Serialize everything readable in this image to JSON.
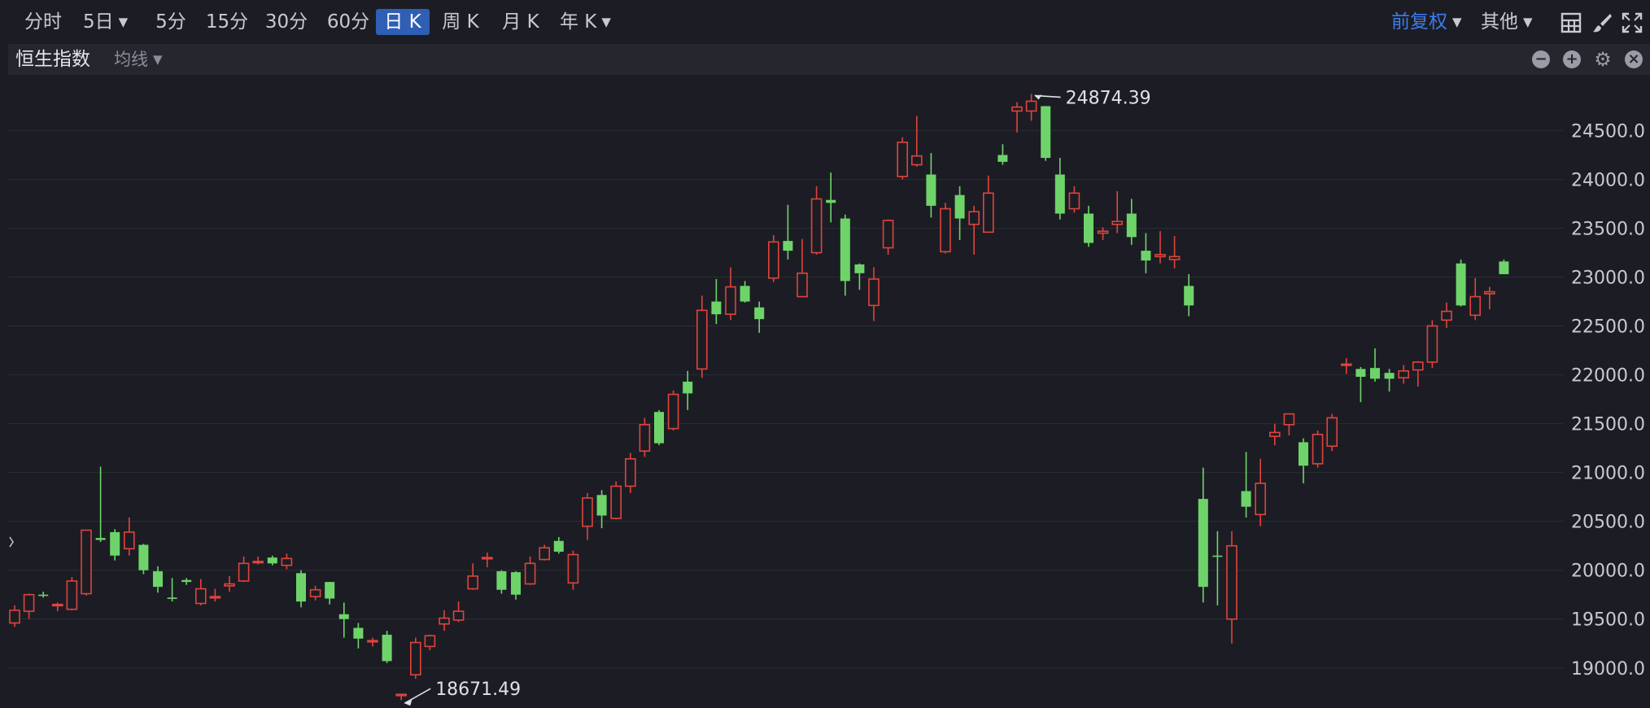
{
  "toolbar": {
    "periods": [
      {
        "label": "分时",
        "active": false
      },
      {
        "label": "5日",
        "active": false,
        "dropdown": true
      },
      {
        "label": "5分",
        "active": false
      },
      {
        "label": "15分",
        "active": false
      },
      {
        "label": "30分",
        "active": false
      },
      {
        "label": "60分",
        "active": false
      },
      {
        "label": "日 K",
        "active": true
      },
      {
        "label": "周 K",
        "active": false
      },
      {
        "label": "月 K",
        "active": false
      },
      {
        "label": "年 K",
        "active": false,
        "dropdown": true
      }
    ],
    "adjust": {
      "label": "前复权",
      "color": "#3d7bea"
    },
    "other": {
      "label": "其他"
    },
    "icons": [
      "layout-grid-icon",
      "brush-icon",
      "fullscreen-icon"
    ]
  },
  "subbar": {
    "title": "恒生指数",
    "ma_label": "均线",
    "icons": [
      "minus-circle-icon",
      "plus-circle-icon",
      "gear-icon",
      "close-circle-icon"
    ]
  },
  "colors": {
    "up": "#e0433c",
    "down": "#6ed46a",
    "background": "#1c1d24",
    "grid": "#2a2c35",
    "axis_text": "#c8cad2",
    "active_tab": "#2f5fb4"
  },
  "chart_data": {
    "type": "candlestick",
    "title": "",
    "y_ticks": [
      19000.0,
      19500.0,
      20000.0,
      20500.0,
      21000.0,
      21500.0,
      22000.0,
      22500.0,
      23000.0,
      23500.0,
      24000.0,
      24500.0
    ],
    "y_tick_labels": [
      "19000.0",
      "19500.0",
      "20000.0",
      "20500.0",
      "21000.0",
      "21500.0",
      "22000.0",
      "22500.0",
      "23000.0",
      "23500.0",
      "24000.0",
      "24500.0"
    ],
    "ylim": [
      18590,
      25070
    ],
    "grid": true,
    "annotations": [
      {
        "label": "24874.39",
        "type": "high",
        "value": 24874.39
      },
      {
        "label": "18671.49",
        "type": "low",
        "value": 18671.49
      }
    ],
    "candles": [
      [
        19460,
        19590,
        19420,
        19640
      ],
      [
        19580,
        19750,
        19500,
        19760
      ],
      [
        19750,
        19740,
        19720,
        19780
      ],
      [
        19650,
        19650,
        19580,
        19670
      ],
      [
        19600,
        19890,
        19590,
        19930
      ],
      [
        19760,
        20410,
        19740,
        20410
      ],
      [
        20330,
        20310,
        20290,
        21060
      ],
      [
        20390,
        20150,
        20100,
        20420
      ],
      [
        20220,
        20390,
        20150,
        20540
      ],
      [
        20260,
        20000,
        19960,
        20270
      ],
      [
        19990,
        19830,
        19770,
        20040
      ],
      [
        19720,
        19710,
        19680,
        19920
      ],
      [
        19900,
        19880,
        19850,
        19920
      ],
      [
        19660,
        19810,
        19640,
        19910
      ],
      [
        19730,
        19730,
        19680,
        19810
      ],
      [
        19840,
        19860,
        19780,
        19940
      ],
      [
        19890,
        20070,
        19880,
        20140
      ],
      [
        20080,
        20090,
        20060,
        20140
      ],
      [
        20130,
        20070,
        20050,
        20150
      ],
      [
        20050,
        20120,
        20010,
        20170
      ],
      [
        19970,
        19680,
        19620,
        20000
      ],
      [
        19730,
        19800,
        19690,
        19840
      ],
      [
        19880,
        19710,
        19650,
        19880
      ],
      [
        19550,
        19500,
        19310,
        19670
      ],
      [
        19410,
        19300,
        19200,
        19460
      ],
      [
        19280,
        19280,
        19220,
        19310
      ],
      [
        19340,
        19070,
        19050,
        19380
      ],
      [
        18730,
        18730,
        18671.49,
        18730
      ],
      [
        18930,
        19260,
        18890,
        19310
      ],
      [
        19220,
        19330,
        19180,
        19340
      ],
      [
        19450,
        19510,
        19380,
        19590
      ],
      [
        19490,
        19580,
        19470,
        19680
      ],
      [
        19810,
        19940,
        19800,
        20070
      ],
      [
        20130,
        20130,
        20030,
        20180
      ],
      [
        19990,
        19800,
        19760,
        20000
      ],
      [
        19980,
        19750,
        19700,
        19990
      ],
      [
        19860,
        20070,
        19850,
        20140
      ],
      [
        20110,
        20230,
        20100,
        20260
      ],
      [
        20300,
        20190,
        20170,
        20340
      ],
      [
        19870,
        20160,
        19800,
        20200
      ],
      [
        20450,
        20740,
        20310,
        20790
      ],
      [
        20770,
        20560,
        20430,
        20820
      ],
      [
        20530,
        20860,
        20520,
        20910
      ],
      [
        20860,
        21140,
        20790,
        21200
      ],
      [
        21220,
        21490,
        21160,
        21560
      ],
      [
        21620,
        21300,
        21280,
        21640
      ],
      [
        21450,
        21800,
        21430,
        21840
      ],
      [
        21930,
        21810,
        21640,
        22040
      ],
      [
        22060,
        22660,
        21970,
        22810
      ],
      [
        22750,
        22620,
        22520,
        22980
      ],
      [
        22620,
        22900,
        22560,
        23100
      ],
      [
        22910,
        22750,
        22740,
        22960
      ],
      [
        22690,
        22570,
        22430,
        22750
      ],
      [
        22990,
        23360,
        22950,
        23430
      ],
      [
        23370,
        23270,
        23180,
        23740
      ],
      [
        22800,
        23040,
        22810,
        23390
      ],
      [
        23250,
        23800,
        23230,
        23930
      ],
      [
        23790,
        23760,
        23560,
        24070
      ],
      [
        23600,
        22960,
        22810,
        23640
      ],
      [
        23130,
        23040,
        22870,
        23140
      ],
      [
        22710,
        22980,
        22550,
        23100
      ],
      [
        23300,
        23580,
        23230,
        23590
      ],
      [
        24030,
        24380,
        24000,
        24430
      ],
      [
        24150,
        24240,
        24130,
        24650
      ],
      [
        24050,
        23730,
        23610,
        24270
      ],
      [
        23260,
        23700,
        23240,
        23760
      ],
      [
        23840,
        23600,
        23380,
        23930
      ],
      [
        23540,
        23670,
        23230,
        23730
      ],
      [
        23460,
        23860,
        23460,
        24040
      ],
      [
        24250,
        24180,
        24150,
        24360
      ],
      [
        24700,
        24740,
        24480,
        24790
      ],
      [
        24700,
        24800,
        24600,
        24874.39
      ],
      [
        24750,
        24220,
        24190,
        24750
      ],
      [
        24050,
        23650,
        23590,
        24220
      ],
      [
        23700,
        23860,
        23660,
        23930
      ],
      [
        23650,
        23350,
        23310,
        23730
      ],
      [
        23450,
        23470,
        23380,
        23510
      ],
      [
        23540,
        23570,
        23450,
        23880
      ],
      [
        23650,
        23410,
        23330,
        23800
      ],
      [
        23270,
        23170,
        23040,
        23450
      ],
      [
        23210,
        23230,
        23140,
        23470
      ],
      [
        23180,
        23210,
        23090,
        23420
      ],
      [
        22910,
        22710,
        22600,
        23030
      ],
      [
        20730,
        19830,
        19670,
        21050
      ],
      [
        20150,
        20140,
        19640,
        20400
      ],
      [
        19500,
        20250,
        19250,
        20400
      ],
      [
        20810,
        20650,
        20540,
        21210
      ],
      [
        20570,
        20890,
        20450,
        21140
      ],
      [
        21370,
        21410,
        21280,
        21500
      ],
      [
        21490,
        21600,
        21380,
        21600
      ],
      [
        21310,
        21070,
        20890,
        21350
      ],
      [
        21090,
        21390,
        21050,
        21430
      ],
      [
        21270,
        21560,
        21220,
        21600
      ],
      [
        22100,
        22110,
        22010,
        22170
      ],
      [
        22060,
        21980,
        21720,
        22080
      ],
      [
        22070,
        21960,
        21930,
        22270
      ],
      [
        22020,
        21960,
        21830,
        22060
      ],
      [
        21970,
        22040,
        21910,
        22100
      ],
      [
        22050,
        22130,
        21880,
        22140
      ],
      [
        22130,
        22500,
        22070,
        22560
      ],
      [
        22560,
        22650,
        22480,
        22740
      ],
      [
        23140,
        22710,
        22700,
        23180
      ],
      [
        22610,
        22800,
        22560,
        22990
      ],
      [
        22830,
        22850,
        22670,
        22900
      ],
      [
        23160,
        23030,
        23030,
        23180
      ]
    ]
  }
}
